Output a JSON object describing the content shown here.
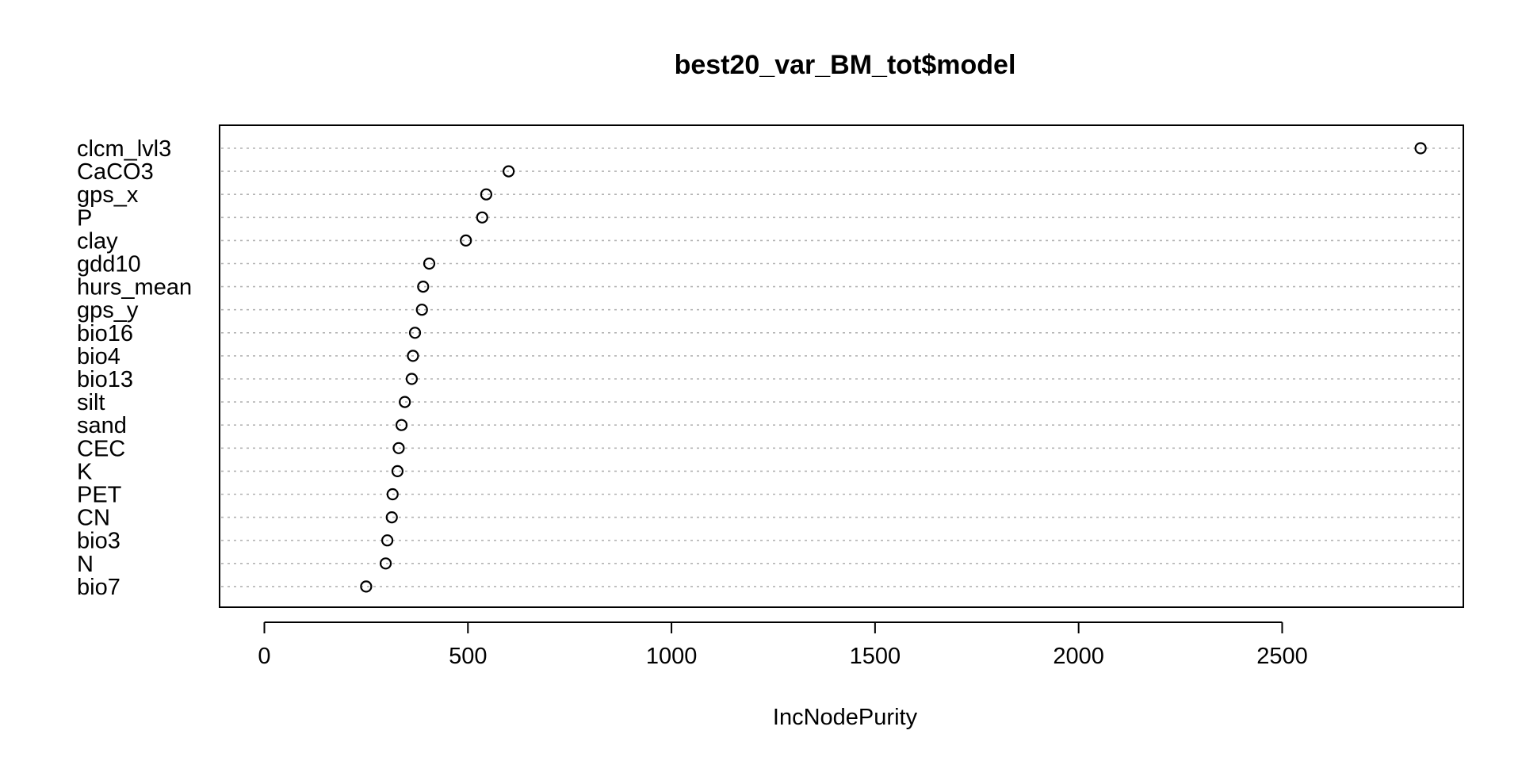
{
  "chart_data": {
    "type": "scatter",
    "subtype": "dotchart",
    "title": "best20_var_BM_tot$model",
    "xlabel": "IncNodePurity",
    "ylabel": "",
    "xlim": [
      -110,
      2945
    ],
    "xticks": [
      0,
      500,
      1000,
      1500,
      2000,
      2500
    ],
    "grid": "horizontal dotted",
    "legend": "none",
    "categories": [
      "clcm_lvl3",
      "CaCO3",
      "gps_x",
      "P",
      "clay",
      "gdd10",
      "hurs_mean",
      "gps_y",
      "bio16",
      "bio4",
      "bio13",
      "silt",
      "sand",
      "CEC",
      "K",
      "PET",
      "CN",
      "bio3",
      "N",
      "bio7"
    ],
    "values": [
      2840,
      600,
      545,
      535,
      495,
      405,
      390,
      387,
      370,
      365,
      362,
      345,
      337,
      330,
      327,
      315,
      313,
      302,
      298,
      250
    ]
  }
}
